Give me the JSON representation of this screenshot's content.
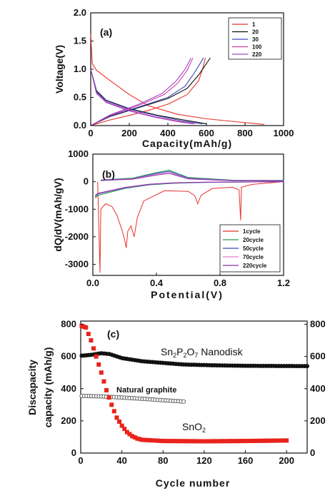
{
  "chart_data": [
    {
      "type": "line",
      "panel_label": "(a)",
      "xlabel": "Capacity(mAh/g)",
      "ylabel": "Voltage(V)",
      "xlim": [
        0,
        1000
      ],
      "ylim": [
        0,
        2.0
      ],
      "xticks": [
        "0",
        "200",
        "400",
        "600",
        "800",
        "1000"
      ],
      "yticks": [
        "0.0",
        "0.5",
        "1.0",
        "1.5",
        "2.0"
      ],
      "legend_position": "top-right",
      "series": [
        {
          "name": "1",
          "color": "#e8312a",
          "discharge": [
            [
              0,
              1.62
            ],
            [
              8,
              1.1
            ],
            [
              30,
              0.98
            ],
            [
              100,
              0.8
            ],
            [
              200,
              0.55
            ],
            [
              300,
              0.35
            ],
            [
              450,
              0.2
            ],
            [
              600,
              0.12
            ],
            [
              750,
              0.07
            ],
            [
              900,
              0.02
            ]
          ],
          "charge": [
            [
              0,
              0.0
            ],
            [
              100,
              0.1
            ],
            [
              200,
              0.18
            ],
            [
              300,
              0.27
            ],
            [
              400,
              0.38
            ],
            [
              500,
              0.55
            ],
            [
              560,
              0.8
            ],
            [
              580,
              1.0
            ],
            [
              595,
              1.2
            ]
          ]
        },
        {
          "name": "20",
          "color": "#111111",
          "discharge": [
            [
              0,
              1.0
            ],
            [
              30,
              0.62
            ],
            [
              80,
              0.45
            ],
            [
              200,
              0.3
            ],
            [
              350,
              0.18
            ],
            [
              500,
              0.09
            ],
            [
              600,
              0.03
            ]
          ],
          "charge": [
            [
              0,
              0.0
            ],
            [
              100,
              0.16
            ],
            [
              250,
              0.32
            ],
            [
              400,
              0.48
            ],
            [
              500,
              0.66
            ],
            [
              560,
              0.9
            ],
            [
              620,
              1.2
            ]
          ]
        },
        {
          "name": "30",
          "color": "#3b46b8",
          "discharge": [
            [
              0,
              1.0
            ],
            [
              30,
              0.6
            ],
            [
              80,
              0.44
            ],
            [
              200,
              0.29
            ],
            [
              350,
              0.17
            ],
            [
              480,
              0.08
            ],
            [
              580,
              0.03
            ]
          ],
          "charge": [
            [
              0,
              0.0
            ],
            [
              100,
              0.17
            ],
            [
              250,
              0.33
            ],
            [
              400,
              0.5
            ],
            [
              490,
              0.7
            ],
            [
              540,
              0.95
            ],
            [
              585,
              1.2
            ]
          ]
        },
        {
          "name": "100",
          "color": "#d23aa0",
          "discharge": [
            [
              0,
              1.0
            ],
            [
              30,
              0.58
            ],
            [
              80,
              0.42
            ],
            [
              200,
              0.27
            ],
            [
              330,
              0.16
            ],
            [
              450,
              0.08
            ],
            [
              540,
              0.03
            ]
          ],
          "charge": [
            [
              0,
              0.0
            ],
            [
              100,
              0.18
            ],
            [
              250,
              0.36
            ],
            [
              380,
              0.55
            ],
            [
              450,
              0.75
            ],
            [
              500,
              0.98
            ],
            [
              530,
              1.2
            ]
          ]
        },
        {
          "name": "220",
          "color": "#9a46c8",
          "discharge": [
            [
              0,
              1.0
            ],
            [
              30,
              0.57
            ],
            [
              80,
              0.41
            ],
            [
              200,
              0.26
            ],
            [
              330,
              0.15
            ],
            [
              450,
              0.07
            ],
            [
              530,
              0.03
            ]
          ],
          "charge": [
            [
              0,
              0.0
            ],
            [
              100,
              0.19
            ],
            [
              250,
              0.38
            ],
            [
              370,
              0.57
            ],
            [
              440,
              0.78
            ],
            [
              490,
              1.0
            ],
            [
              520,
              1.2
            ]
          ]
        }
      ]
    },
    {
      "type": "line",
      "panel_label": "(b)",
      "xlabel": "Potential(V)",
      "ylabel": "dQ/dV(mAh/gV)",
      "xlim": [
        0,
        1.2
      ],
      "ylim": [
        -3400,
        1000
      ],
      "xticks": [
        "0.0",
        "0.4",
        "0.8",
        "1.2"
      ],
      "yticks": [
        "1000",
        "0",
        "-1000",
        "-2000",
        "-3000"
      ],
      "legend_position": "bottom-right",
      "series": [
        {
          "name": "1cycle",
          "color": "#e8312a",
          "points": [
            [
              0.03,
              0
            ],
            [
              0.045,
              -3300
            ],
            [
              0.05,
              -1000
            ],
            [
              0.08,
              -800
            ],
            [
              0.12,
              -900
            ],
            [
              0.15,
              -1200
            ],
            [
              0.18,
              -1700
            ],
            [
              0.2,
              -2100
            ],
            [
              0.21,
              -2400
            ],
            [
              0.22,
              -1800
            ],
            [
              0.24,
              -1600
            ],
            [
              0.26,
              -2000
            ],
            [
              0.28,
              -1300
            ],
            [
              0.32,
              -700
            ],
            [
              0.45,
              -330
            ],
            [
              0.6,
              -350
            ],
            [
              0.64,
              -500
            ],
            [
              0.66,
              -800
            ],
            [
              0.68,
              -500
            ],
            [
              0.75,
              -250
            ],
            [
              0.88,
              -200
            ],
            [
              0.92,
              -300
            ],
            [
              0.93,
              -1400
            ],
            [
              0.935,
              -200
            ],
            [
              1.0,
              -100
            ],
            [
              1.2,
              0
            ]
          ]
        },
        {
          "name": "20cycle",
          "color": "#1f9e4a",
          "points": [
            [
              0.015,
              -600
            ],
            [
              0.03,
              -500
            ],
            [
              0.2,
              -250
            ],
            [
              0.35,
              -120
            ],
            [
              0.5,
              -60
            ],
            [
              0.7,
              -30
            ],
            [
              1.2,
              0
            ],
            [
              1.2,
              50
            ],
            [
              0.9,
              50
            ],
            [
              0.6,
              150
            ],
            [
              0.48,
              420
            ],
            [
              0.4,
              330
            ],
            [
              0.25,
              130
            ],
            [
              0.1,
              80
            ],
            [
              0.05,
              60
            ]
          ]
        },
        {
          "name": "50cycle",
          "color": "#3b46b8",
          "points": [
            [
              0.015,
              -550
            ],
            [
              0.03,
              -450
            ],
            [
              0.2,
              -230
            ],
            [
              0.35,
              -110
            ],
            [
              0.5,
              -50
            ],
            [
              0.7,
              -25
            ],
            [
              1.2,
              0
            ],
            [
              1.2,
              40
            ],
            [
              0.9,
              40
            ],
            [
              0.6,
              130
            ],
            [
              0.48,
              380
            ],
            [
              0.4,
              300
            ],
            [
              0.25,
              110
            ],
            [
              0.1,
              70
            ],
            [
              0.05,
              50
            ]
          ]
        },
        {
          "name": "70cycle",
          "color": "#e07ad0",
          "points": [
            [
              0.015,
              -520
            ],
            [
              0.03,
              -430
            ],
            [
              0.2,
              -220
            ],
            [
              0.35,
              -100
            ],
            [
              0.5,
              -45
            ],
            [
              0.7,
              -20
            ],
            [
              1.2,
              0
            ],
            [
              1.2,
              35
            ],
            [
              0.9,
              35
            ],
            [
              0.6,
              110
            ],
            [
              0.48,
              340
            ],
            [
              0.4,
              270
            ],
            [
              0.25,
              100
            ],
            [
              0.1,
              60
            ],
            [
              0.05,
              40
            ]
          ]
        },
        {
          "name": "220cycle",
          "color": "#8a2fa8",
          "points": [
            [
              0.015,
              -500
            ],
            [
              0.03,
              -420
            ],
            [
              0.2,
              -210
            ],
            [
              0.35,
              -95
            ],
            [
              0.5,
              -40
            ],
            [
              0.7,
              -18
            ],
            [
              1.2,
              0
            ],
            [
              1.2,
              30
            ],
            [
              0.9,
              30
            ],
            [
              0.6,
              100
            ],
            [
              0.48,
              300
            ],
            [
              0.4,
              240
            ],
            [
              0.25,
              90
            ],
            [
              0.1,
              55
            ],
            [
              0.05,
              35
            ]
          ]
        }
      ]
    },
    {
      "type": "scatter",
      "panel_label": "(c)",
      "xlabel": "Cycle number",
      "ylabel_line1": "Discapacity",
      "ylabel_line2": "capacity (mAh/g)",
      "xlim": [
        0,
        220
      ],
      "ylim": [
        0,
        820
      ],
      "xticks": [
        "0",
        "40",
        "80",
        "120",
        "160",
        "200"
      ],
      "yticks": [
        "0",
        "200",
        "400",
        "600",
        "800"
      ],
      "yticks_right": [
        "0",
        "200",
        "400",
        "600",
        "800"
      ],
      "annotations": {
        "sn2p2o7": "Sn2P2O7 Nanodisk",
        "graphite": "Natural graphite",
        "sno2": "SnO2"
      },
      "series": [
        {
          "name": "Sn2P2O7 Nanodisk",
          "color": "#111111",
          "marker": "circle-filled",
          "keypoints": [
            [
              1,
              605
            ],
            [
              10,
              610
            ],
            [
              20,
              620
            ],
            [
              28,
              615
            ],
            [
              40,
              590
            ],
            [
              60,
              570
            ],
            [
              80,
              560
            ],
            [
              100,
              550
            ],
            [
              130,
              545
            ],
            [
              160,
              542
            ],
            [
              220,
              540
            ]
          ]
        },
        {
          "name": "Natural graphite",
          "color": "#555555",
          "marker": "circle-open",
          "keypoints": [
            [
              1,
              355
            ],
            [
              20,
              352
            ],
            [
              40,
              345
            ],
            [
              60,
              337
            ],
            [
              80,
              328
            ],
            [
              100,
              320
            ]
          ]
        },
        {
          "name": "SnO2",
          "color": "#e8231b",
          "marker": "square-filled",
          "keypoints": [
            [
              1,
              790
            ],
            [
              5,
              780
            ],
            [
              10,
              700
            ],
            [
              15,
              600
            ],
            [
              20,
              500
            ],
            [
              25,
              390
            ],
            [
              30,
              300
            ],
            [
              35,
              220
            ],
            [
              40,
              170
            ],
            [
              45,
              130
            ],
            [
              50,
              105
            ],
            [
              55,
              90
            ],
            [
              60,
              82
            ],
            [
              80,
              75
            ],
            [
              120,
              73
            ],
            [
              160,
              75
            ],
            [
              200,
              78
            ]
          ]
        }
      ]
    }
  ]
}
